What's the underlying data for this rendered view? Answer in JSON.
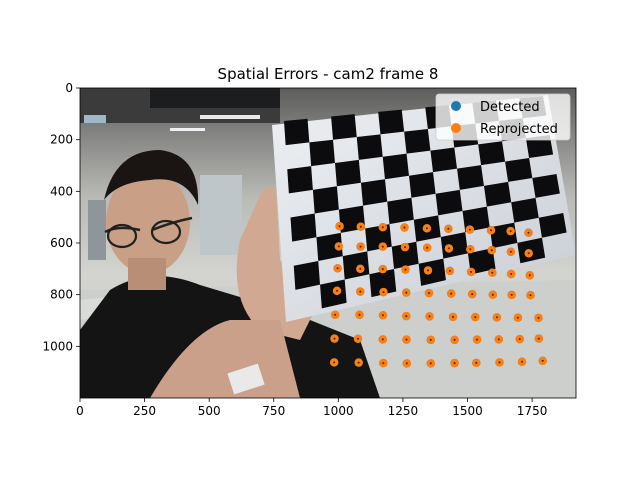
{
  "chart_data": {
    "type": "scatter",
    "title": "Spatial Errors - cam2 frame 8",
    "xlabel": "",
    "ylabel": "",
    "xlim": [
      0,
      1920
    ],
    "ylim": [
      1200,
      0
    ],
    "y_inverted": true,
    "x_ticks": [
      0,
      250,
      500,
      750,
      1000,
      1250,
      1500,
      1750
    ],
    "y_ticks": [
      0,
      200,
      400,
      600,
      800,
      1000
    ],
    "legend_position": "top-right",
    "background": "photo of a person holding a checkerboard calibration target",
    "colors": {
      "detected": "#1f77b4",
      "reprojected": "#ff7f0e"
    },
    "series": [
      {
        "name": "Detected",
        "color": "#1f77b4",
        "points": [
          [
            1005,
            535
          ],
          [
            1087,
            537
          ],
          [
            1172,
            539
          ],
          [
            1256,
            540
          ],
          [
            1343,
            543
          ],
          [
            1426,
            545
          ],
          [
            1509,
            548
          ],
          [
            1591,
            551
          ],
          [
            1667,
            554
          ],
          [
            1736,
            560
          ],
          [
            1002,
            613
          ],
          [
            1086,
            614
          ],
          [
            1172,
            614
          ],
          [
            1258,
            616
          ],
          [
            1344,
            618
          ],
          [
            1428,
            621
          ],
          [
            1511,
            624
          ],
          [
            1594,
            628
          ],
          [
            1668,
            634
          ],
          [
            1737,
            640
          ],
          [
            997,
            698
          ],
          [
            1085,
            700
          ],
          [
            1172,
            701
          ],
          [
            1260,
            703
          ],
          [
            1347,
            706
          ],
          [
            1432,
            708
          ],
          [
            1514,
            712
          ],
          [
            1596,
            715
          ],
          [
            1669,
            720
          ],
          [
            1741,
            725
          ],
          [
            995,
            785
          ],
          [
            1085,
            788
          ],
          [
            1175,
            790
          ],
          [
            1263,
            792
          ],
          [
            1351,
            794
          ],
          [
            1437,
            796
          ],
          [
            1518,
            798
          ],
          [
            1598,
            800
          ],
          [
            1671,
            801
          ],
          [
            1744,
            802
          ],
          [
            988,
            878
          ],
          [
            1082,
            878
          ],
          [
            1173,
            880
          ],
          [
            1263,
            883
          ],
          [
            1353,
            884
          ],
          [
            1444,
            886
          ],
          [
            1530,
            887
          ],
          [
            1614,
            888
          ],
          [
            1695,
            889
          ],
          [
            1775,
            890
          ],
          [
            985,
            970
          ],
          [
            1076,
            971
          ],
          [
            1172,
            973
          ],
          [
            1264,
            974
          ],
          [
            1358,
            975
          ],
          [
            1450,
            975
          ],
          [
            1537,
            974
          ],
          [
            1621,
            973
          ],
          [
            1702,
            972
          ],
          [
            1776,
            970
          ],
          [
            984,
            1062
          ],
          [
            1079,
            1063
          ],
          [
            1174,
            1065
          ],
          [
            1265,
            1066
          ],
          [
            1358,
            1066
          ],
          [
            1450,
            1065
          ],
          [
            1534,
            1064
          ],
          [
            1624,
            1062
          ],
          [
            1711,
            1060
          ],
          [
            1791,
            1056
          ]
        ]
      },
      {
        "name": "Reprojected",
        "color": "#ff7f0e",
        "points": [
          [
            1005,
            535
          ],
          [
            1087,
            537
          ],
          [
            1172,
            539
          ],
          [
            1256,
            540
          ],
          [
            1343,
            543
          ],
          [
            1426,
            545
          ],
          [
            1509,
            548
          ],
          [
            1591,
            551
          ],
          [
            1667,
            554
          ],
          [
            1736,
            560
          ],
          [
            1002,
            613
          ],
          [
            1086,
            614
          ],
          [
            1172,
            614
          ],
          [
            1258,
            616
          ],
          [
            1344,
            618
          ],
          [
            1428,
            621
          ],
          [
            1511,
            624
          ],
          [
            1594,
            628
          ],
          [
            1668,
            634
          ],
          [
            1737,
            640
          ],
          [
            997,
            698
          ],
          [
            1085,
            700
          ],
          [
            1172,
            701
          ],
          [
            1260,
            703
          ],
          [
            1347,
            706
          ],
          [
            1432,
            708
          ],
          [
            1514,
            712
          ],
          [
            1596,
            715
          ],
          [
            1669,
            720
          ],
          [
            1741,
            725
          ],
          [
            995,
            785
          ],
          [
            1085,
            788
          ],
          [
            1175,
            790
          ],
          [
            1263,
            792
          ],
          [
            1351,
            794
          ],
          [
            1437,
            796
          ],
          [
            1518,
            798
          ],
          [
            1598,
            800
          ],
          [
            1671,
            801
          ],
          [
            1744,
            802
          ],
          [
            988,
            878
          ],
          [
            1082,
            878
          ],
          [
            1173,
            880
          ],
          [
            1263,
            883
          ],
          [
            1353,
            884
          ],
          [
            1444,
            886
          ],
          [
            1530,
            887
          ],
          [
            1614,
            888
          ],
          [
            1695,
            889
          ],
          [
            1775,
            890
          ],
          [
            985,
            970
          ],
          [
            1076,
            971
          ],
          [
            1172,
            973
          ],
          [
            1264,
            974
          ],
          [
            1358,
            975
          ],
          [
            1450,
            975
          ],
          [
            1537,
            974
          ],
          [
            1621,
            973
          ],
          [
            1702,
            972
          ],
          [
            1776,
            970
          ],
          [
            984,
            1062
          ],
          [
            1079,
            1063
          ],
          [
            1174,
            1065
          ],
          [
            1265,
            1066
          ],
          [
            1358,
            1066
          ],
          [
            1450,
            1065
          ],
          [
            1534,
            1064
          ],
          [
            1624,
            1062
          ],
          [
            1711,
            1060
          ],
          [
            1791,
            1056
          ]
        ]
      }
    ]
  }
}
